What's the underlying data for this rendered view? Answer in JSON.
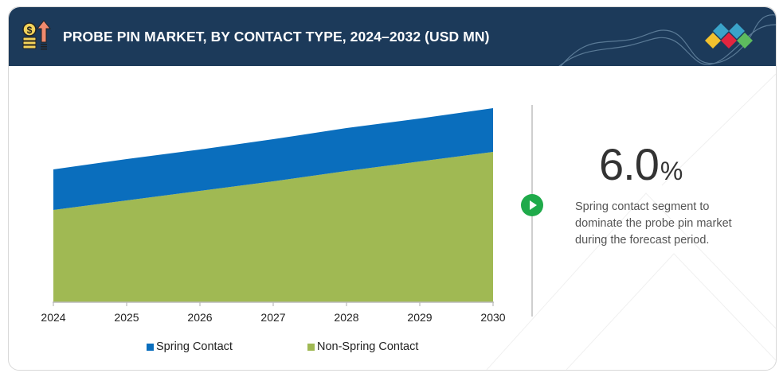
{
  "header": {
    "title": "PROBE PIN MARKET, BY CONTACT TYPE, 2024–2032 (USD MN)",
    "icon": "coins-growth-icon",
    "logo": "diamond-logo-icon"
  },
  "highlight": {
    "value": "6.0",
    "unit": "%",
    "description": "Spring contact segment to dominate the probe pin market during the forecast period."
  },
  "colors": {
    "header_bg": "#1c3a5a",
    "spring": "#0a6ebd",
    "non_spring": "#a0b953",
    "accent": "#1faa4a"
  },
  "chart_data": {
    "type": "area",
    "stacked": true,
    "title": "PROBE PIN MARKET, BY CONTACT TYPE, 2024–2032 (USD MN)",
    "xlabel": "",
    "ylabel": "",
    "categories": [
      "2024",
      "2025",
      "2026",
      "2027",
      "2028",
      "2029",
      "2030"
    ],
    "series": [
      {
        "name": "Non-Spring Contact",
        "color": "#a0b953",
        "values": [
          116,
          128,
          140,
          152,
          165,
          177,
          189
        ]
      },
      {
        "name": "Spring Contact",
        "color": "#0a6ebd",
        "values": [
          51,
          52,
          52,
          53,
          54,
          54,
          55
        ]
      }
    ],
    "ylim": [
      0,
      250
    ],
    "y_axis_visible": false,
    "grid": false,
    "legend": {
      "position": "bottom",
      "items": [
        "Spring Contact",
        "Non-Spring Contact"
      ]
    },
    "note": "Values are relative (no y-axis scale shown)"
  }
}
